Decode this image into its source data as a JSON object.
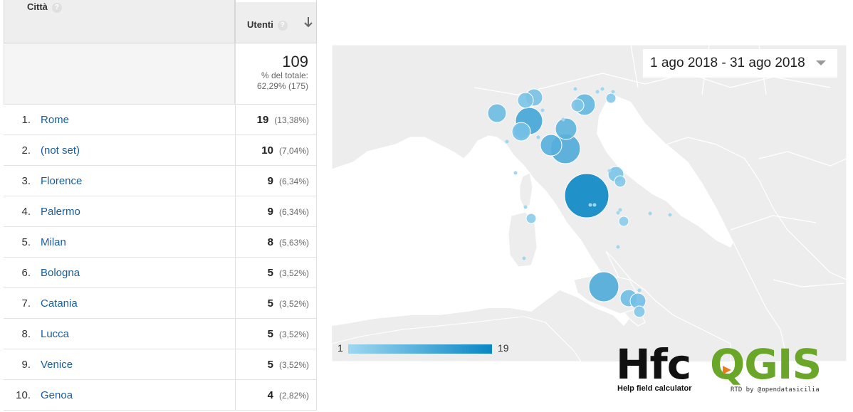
{
  "table": {
    "header_city": "Città",
    "header_users": "Utenti",
    "help_glyph": "?",
    "sort_icon": "arrow-down-icon",
    "total": {
      "value": "109",
      "label": "% del totale:",
      "detail": "62,29% (175)"
    },
    "rows": [
      {
        "rank": "1.",
        "city": "Rome",
        "users": "19",
        "pct": "(13,38%)"
      },
      {
        "rank": "2.",
        "city": "(not set)",
        "users": "10",
        "pct": "(7,04%)"
      },
      {
        "rank": "3.",
        "city": "Florence",
        "users": "9",
        "pct": "(6,34%)"
      },
      {
        "rank": "4.",
        "city": "Palermo",
        "users": "9",
        "pct": "(6,34%)"
      },
      {
        "rank": "5.",
        "city": "Milan",
        "users": "8",
        "pct": "(5,63%)"
      },
      {
        "rank": "6.",
        "city": "Bologna",
        "users": "5",
        "pct": "(3,52%)"
      },
      {
        "rank": "7.",
        "city": "Catania",
        "users": "5",
        "pct": "(3,52%)"
      },
      {
        "rank": "8.",
        "city": "Lucca",
        "users": "5",
        "pct": "(3,52%)"
      },
      {
        "rank": "9.",
        "city": "Venice",
        "users": "5",
        "pct": "(3,52%)"
      },
      {
        "rank": "10.",
        "city": "Genoa",
        "users": "4",
        "pct": "(2,82%)"
      }
    ]
  },
  "map": {
    "date_range": "1 ago 2018 - 31 ago 2018",
    "legend_min": "1",
    "legend_max": "19",
    "colors": {
      "low": "#9fd7f1",
      "high": "#0a86c4",
      "land": "#ededed",
      "border": "#ffffff"
    }
  },
  "logo": {
    "name_dark": "Hfc",
    "name_green": "QGIS",
    "tagline": "Help field calculator",
    "credit": "RTD by @opendatasicilia"
  }
}
